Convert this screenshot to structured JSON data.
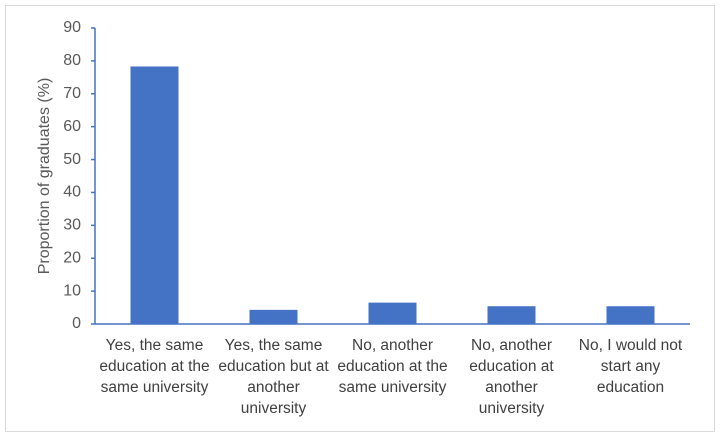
{
  "chart_data": {
    "type": "bar",
    "y_label": "Proportion of graduates (%)",
    "categories": [
      "Yes, the same education at the same university",
      "Yes, the same education but at another university",
      "No, another education at the same university",
      "No, another education at another university",
      "No, I would not start any education"
    ],
    "values": [
      78.3,
      4.3,
      6.5,
      5.4,
      5.4
    ],
    "color": "#4472c4",
    "ylim": [
      0,
      90
    ],
    "yticks": [
      0,
      10,
      20,
      30,
      40,
      50,
      60,
      70,
      80,
      90
    ]
  }
}
